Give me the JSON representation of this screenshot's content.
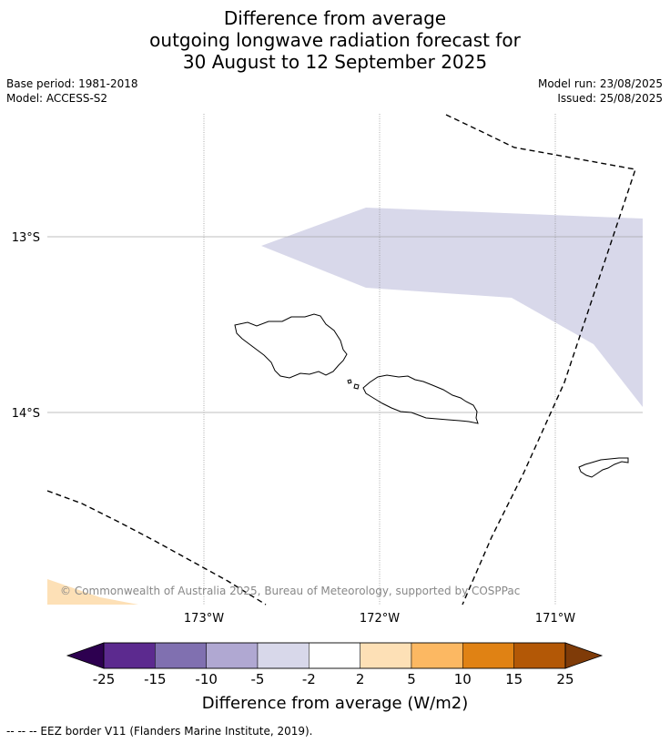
{
  "title": {
    "line1": "Difference from average",
    "line2": "outgoing longwave radiation forecast for",
    "line3": "30 August to 12 September 2025"
  },
  "meta": {
    "base_period": "Base period: 1981-2018",
    "model": "Model: ACCESS-S2",
    "model_run": "Model run: 23/08/2025",
    "issued": "Issued: 25/08/2025"
  },
  "map": {
    "lat_labels": [
      "13°S",
      "14°S"
    ],
    "lon_labels": [
      "173°W",
      "172°W",
      "171°W"
    ],
    "copyright": "© Commonwealth of Australia 2025, Bureau of Meteorology, supported by COSPPac"
  },
  "colorbar": {
    "ticks": [
      "-25",
      "-15",
      "-10",
      "-5",
      "-2",
      "2",
      "5",
      "10",
      "15",
      "25"
    ],
    "label": "Difference from average (W/m2)",
    "colors": {
      "below": "#2d0050",
      "bins": [
        "#5c2a8f",
        "#8070b0",
        "#b0a8d2",
        "#d8d8ea",
        "#ffffff",
        "#fde0b6",
        "#fcb862",
        "#e08214",
        "#b35806"
      ],
      "above": "#7f3b08"
    }
  },
  "footnote": "-- -- -- EEZ border V11 (Flanders Marine Institute, 2019)."
}
